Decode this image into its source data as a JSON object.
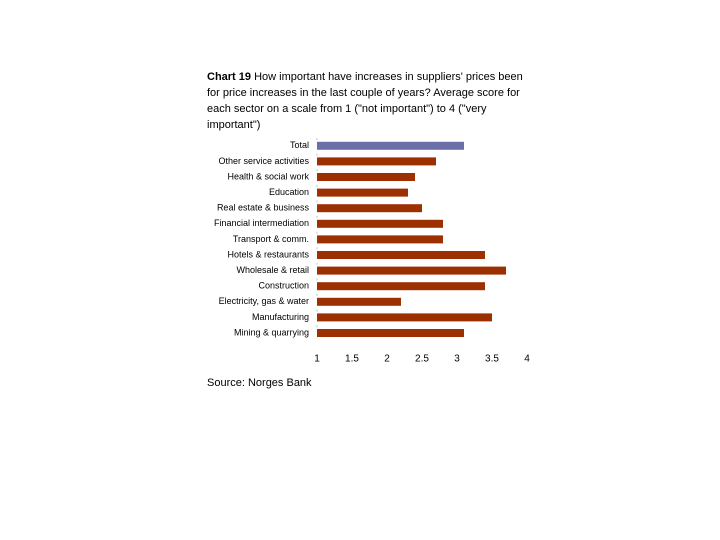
{
  "chart_data": {
    "type": "barh",
    "chart_label": "Chart 19",
    "title": "How important have increases in suppliers' prices been for price increases in the last couple of years? Average score for each sector on a scale from 1 (\"not important\") to 4 (\"very important\")",
    "source": "Source: Norges Bank",
    "categories": [
      "Total",
      "Other service activities",
      "Health & social work",
      "Education",
      "Real estate & business",
      "Financial intermediation",
      "Transport & comm.",
      "Hotels & restaurants",
      "Wholesale & retail",
      "Construction",
      "Electricity, gas & water",
      "Manufacturing",
      "Mining & quarrying"
    ],
    "values": [
      3.1,
      2.7,
      2.4,
      2.3,
      2.5,
      2.8,
      2.8,
      3.4,
      3.7,
      3.4,
      2.2,
      3.5,
      3.1
    ],
    "colors": [
      "#6b6fa8",
      "#9c3000",
      "#9c3000",
      "#9c3000",
      "#9c3000",
      "#9c3000",
      "#9c3000",
      "#9c3000",
      "#9c3000",
      "#9c3000",
      "#9c3000",
      "#9c3000",
      "#9c3000"
    ],
    "xlim": [
      1,
      4
    ],
    "xticks": [
      1,
      1.5,
      2,
      2.5,
      3,
      3.5,
      4
    ]
  }
}
